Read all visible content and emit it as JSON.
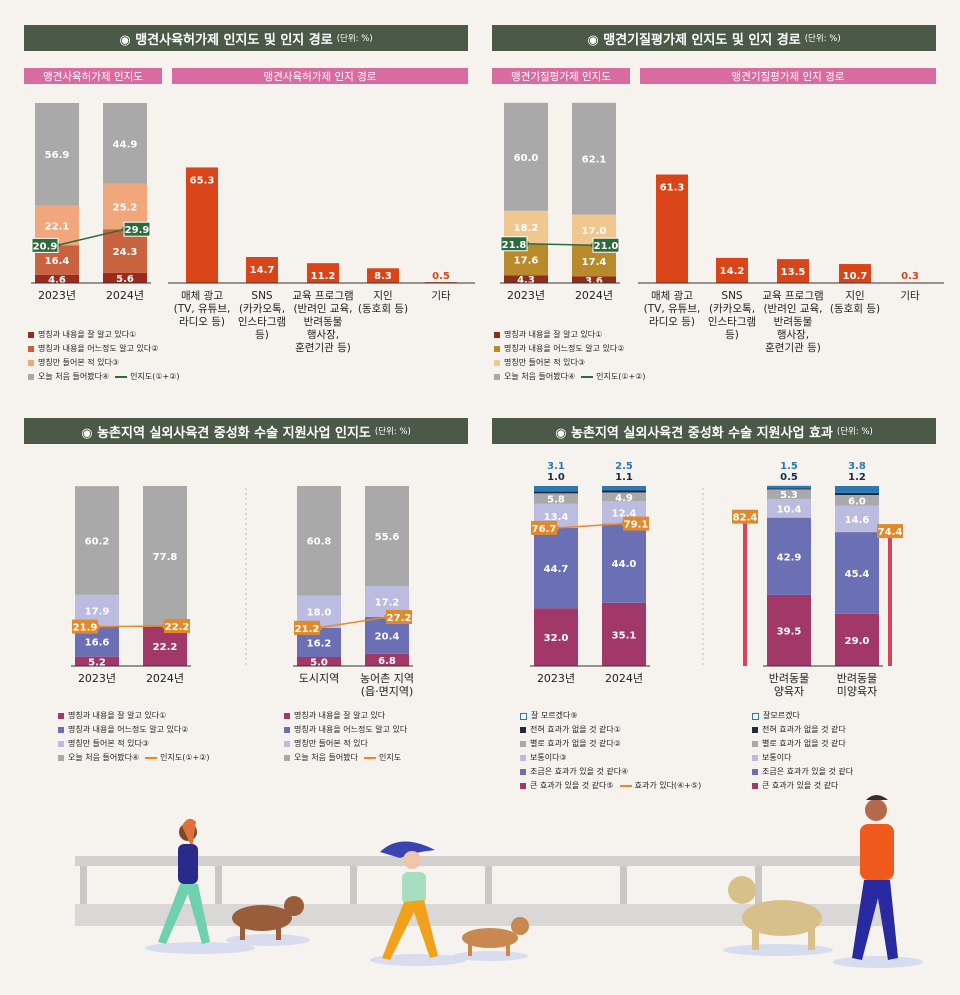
{
  "panels": {
    "p1": {
      "title": "◉ 맹견사육허가제 인지도 및 인지 경로",
      "unit": "(단위: %)",
      "pill_left": "맹견사육허가제 인지도",
      "pill_right": "맹견사육허가제 인지 경로",
      "legend": [
        "명칭과 내용을 잘 알고 있다①",
        "명칭과 내용을 어느정도 알고 있다②",
        "명칭만 들어본 적 있다③",
        "오늘 처음 들어봤다④"
      ],
      "legend_line": "인지도(①+②)"
    },
    "p2": {
      "title": "◉ 맹견기질평가제 인지도 및 인지 경로",
      "unit": "(단위: %)",
      "pill_left": "맹견기질평가제 인지도",
      "pill_right": "맹견기질평가제 인지 경로",
      "legend": [
        "명칭과 내용을 잘 알고 있다①",
        "명칭과 내용을 어느정도 알고 있다②",
        "명칭만 들어본 적 있다③",
        "오늘 처음 들어봤다④"
      ],
      "legend_line": "인지도(①+②)"
    },
    "p3": {
      "title": "◉ 농촌지역 실외사육견 중성화 수술 지원사업 인지도",
      "unit": "(단위: %)",
      "legend_a": [
        "명칭과 내용을 잘 알고 있다①",
        "명칭과 내용을 어느정도 알고 있다②",
        "명칭만 들어본 적 있다③",
        "오늘 처음 들어봤다④"
      ],
      "legend_a_line": "인지도(①+②)",
      "legend_b": [
        "명칭과 내용을 잘 알고 있다",
        "명칭과 내용을 어느정도 알고 있다",
        "명칭만 들어본 적 있다",
        "오늘 처음 들어봤다"
      ],
      "legend_b_line": "인지도"
    },
    "p4": {
      "title": "◉ 농촌지역 실외사육견 중성화 수술 지원사업 효과",
      "unit": "(단위: %)",
      "legend_a": [
        "잘 모르겠다⑨",
        "전혀 효과가 없을 것 같다①",
        "별로 효과가 없을 것 같다②",
        "보통이다③",
        "조금은 효과가 있을 것 같다④",
        "큰 효과가 있을 것 같다⑤"
      ],
      "legend_a_line": "효과가 있다(④+⑤)",
      "legend_b": [
        "잘모르겠다",
        "전혀 효과가 없을 것 같다",
        "별로 효과가 없을 것 같다",
        "보통이다",
        "조금은 효과가 있을 것 같다",
        "큰 효과가 있을 것 같다"
      ]
    }
  },
  "colors": {
    "awareness_4": [
      "#9b2a1c",
      "#c9623e",
      "#f1a77c",
      "#a9a9a9"
    ],
    "kijil_4": [
      "#8d2d1e",
      "#b88a2c",
      "#f0c78f",
      "#a9a9a9"
    ],
    "neut_4": [
      "#a23868",
      "#6b6fb4",
      "#bcbbe0",
      "#a9a9a9"
    ],
    "effect_6": [
      "#a23868",
      "#6b6fb4",
      "#bcbbe0",
      "#a9a9a9",
      "#1d2a44",
      "#2d78b3"
    ],
    "route_bar": "#d94418",
    "line_green": "#2d6a3c",
    "line_orange": "#e8892c",
    "label_orange": "#e08a2c"
  },
  "chart_data": [
    {
      "id": "p1_awareness",
      "type": "bar",
      "stacked": true,
      "categories": [
        "2023년",
        "2024년"
      ],
      "series": [
        {
          "name": "명칭과 내용을 잘 알고 있다①",
          "values": [
            4.6,
            5.6
          ]
        },
        {
          "name": "명칭과 내용을 어느정도 알고 있다②",
          "values": [
            16.4,
            24.3
          ]
        },
        {
          "name": "명칭만 들어본 적 있다③",
          "values": [
            22.1,
            25.2
          ]
        },
        {
          "name": "오늘 처음 들어봤다④",
          "values": [
            56.9,
            44.9
          ]
        }
      ],
      "line": {
        "name": "인지도(①+②)",
        "values": [
          20.9,
          29.9
        ]
      }
    },
    {
      "id": "p1_routes",
      "type": "bar",
      "categories": [
        "매체 광고\n(TV, 유튜브,\n라디오 등)",
        "SNS\n(카카오톡,\n인스타그램\n등)",
        "교육 프로그램\n(반려인 교육,\n반려동물\n행사장,\n훈련기관 등)",
        "지인\n(동호회 등)",
        "기타"
      ],
      "values": [
        65.3,
        14.7,
        11.2,
        8.3,
        0.5
      ]
    },
    {
      "id": "p2_awareness",
      "type": "bar",
      "stacked": true,
      "categories": [
        "2023년",
        "2024년"
      ],
      "series": [
        {
          "name": "명칭과 내용을 잘 알고 있다①",
          "values": [
            4.3,
            3.6
          ]
        },
        {
          "name": "명칭과 내용을 어느정도 알고 있다②",
          "values": [
            17.6,
            17.4
          ]
        },
        {
          "name": "명칭만 들어본 적 있다③",
          "values": [
            18.2,
            17.0
          ]
        },
        {
          "name": "오늘 처음 들어봤다④",
          "values": [
            60.0,
            62.1
          ]
        }
      ],
      "line": {
        "name": "인지도(①+②)",
        "values": [
          21.8,
          21.0
        ]
      }
    },
    {
      "id": "p2_routes",
      "type": "bar",
      "categories": [
        "매체 광고\n(TV, 유튜브,\n라디오 등)",
        "SNS\n(카카오톡,\n인스타그램\n등)",
        "교육 프로그램\n(반려인 교육,\n반려동물\n행사장,\n훈련기관 등)",
        "지인\n(동호회 등)",
        "기타"
      ],
      "values": [
        61.3,
        14.2,
        13.5,
        10.7,
        0.3
      ]
    },
    {
      "id": "p3_year",
      "type": "bar",
      "stacked": true,
      "categories": [
        "2023년",
        "2024년"
      ],
      "series": [
        {
          "name": "명칭과 내용을 잘 알고 있다①",
          "values": [
            5.2,
            22.2
          ]
        },
        {
          "name": "명칭과 내용을 어느정도 알고 있다②",
          "values": [
            16.6,
            0
          ]
        },
        {
          "name": "명칭만 들어본 적 있다③",
          "values": [
            17.9,
            0
          ]
        },
        {
          "name": "오늘 처음 들어봤다④",
          "values": [
            60.2,
            77.8
          ]
        }
      ],
      "line": {
        "name": "인지도(①+②)",
        "values": [
          21.9,
          22.2
        ]
      }
    },
    {
      "id": "p3_region",
      "type": "bar",
      "stacked": true,
      "categories": [
        "도시지역",
        "농어촌 지역\n(읍·면지역)"
      ],
      "series": [
        {
          "name": "명칭과 내용을 잘 알고 있다",
          "values": [
            5.0,
            6.8
          ]
        },
        {
          "name": "명칭과 내용을 어느정도 알고 있다",
          "values": [
            16.2,
            20.4
          ]
        },
        {
          "name": "명칭만 들어본 적 있다",
          "values": [
            18.0,
            17.2
          ]
        },
        {
          "name": "오늘 처음 들어봤다",
          "values": [
            60.8,
            55.6
          ]
        }
      ],
      "line": {
        "name": "인지도",
        "values": [
          21.2,
          27.2
        ]
      }
    },
    {
      "id": "p4_year",
      "type": "bar",
      "stacked": true,
      "categories": [
        "2023년",
        "2024년"
      ],
      "series": [
        {
          "name": "큰 효과가 있을 것 같다⑤",
          "values": [
            32.0,
            35.1
          ]
        },
        {
          "name": "조금은 효과가 있을 것 같다④",
          "values": [
            44.7,
            44.0
          ]
        },
        {
          "name": "보통이다③",
          "values": [
            13.4,
            12.4
          ]
        },
        {
          "name": "별로 효과가 없을 것 같다②",
          "values": [
            5.8,
            4.9
          ]
        },
        {
          "name": "전혀 효과가 없을 것 같다①",
          "values": [
            1.0,
            1.1
          ]
        },
        {
          "name": "잘 모르겠다⑨",
          "values": [
            3.1,
            2.5
          ]
        }
      ],
      "line": {
        "name": "효과가 있다(④+⑤)",
        "values": [
          76.7,
          79.1
        ]
      }
    },
    {
      "id": "p4_owner",
      "type": "bar",
      "stacked": true,
      "categories": [
        "반려동물\n양육자",
        "반려동물\n미양육자"
      ],
      "series": [
        {
          "name": "큰 효과가 있을 것 같다",
          "values": [
            39.5,
            29.0
          ]
        },
        {
          "name": "조금은 효과가 있을 것 같다",
          "values": [
            42.9,
            45.4
          ]
        },
        {
          "name": "보통이다",
          "values": [
            10.4,
            14.6
          ]
        },
        {
          "name": "별로 효과가 없을 것 같다",
          "values": [
            5.3,
            6.0
          ]
        },
        {
          "name": "전혀 효과가 없을 것 같다",
          "values": [
            0.5,
            1.2
          ]
        },
        {
          "name": "잘모르겠다",
          "values": [
            1.5,
            3.8
          ]
        }
      ],
      "side_labels": [
        82.4,
        74.4
      ]
    }
  ]
}
